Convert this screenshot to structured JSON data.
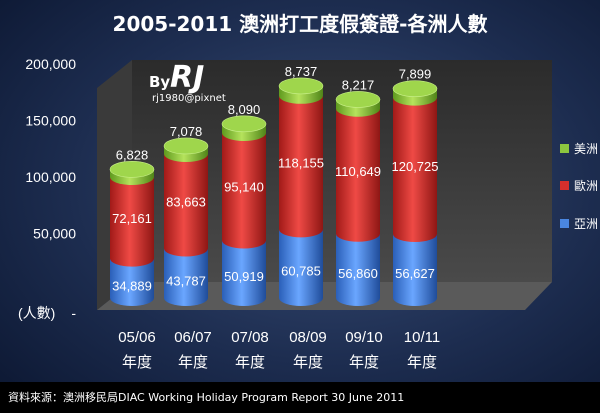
{
  "chart_data": {
    "type": "bar",
    "subtype": "stacked-cylinder-3d",
    "title": "2005-2011 澳洲打工度假簽證-各洲人數",
    "ylabel": "(人數)",
    "ylim": [
      0,
      200000
    ],
    "yticks": [
      "200,000",
      "150,000",
      "100,000",
      "50,000",
      "-"
    ],
    "ytick_values": [
      200000,
      150000,
      100000,
      50000,
      0
    ],
    "categories": [
      "05/06",
      "06/07",
      "07/08",
      "08/09",
      "09/10",
      "10/11"
    ],
    "category_suffix": "年度",
    "series": [
      {
        "name": "亞洲",
        "color": "#4a86e0",
        "values": [
          34889,
          43787,
          50919,
          60785,
          56860,
          56627
        ],
        "labels": [
          "34,889",
          "43,787",
          "50,919",
          "60,785",
          "56,860",
          "56,627"
        ]
      },
      {
        "name": "歐洲",
        "color": "#d62f2c",
        "values": [
          72161,
          83663,
          95140,
          118155,
          110649,
          120725
        ],
        "labels": [
          "72,161",
          "83,663",
          "95,140",
          "118,155",
          "110,649",
          "120,725"
        ]
      },
      {
        "name": "美洲",
        "color": "#8cc63f",
        "values": [
          6828,
          7078,
          8090,
          8737,
          8217,
          7899
        ],
        "labels": [
          "6,828",
          "7,078",
          "8,090",
          "8,737",
          "8,217",
          "7,899"
        ]
      }
    ],
    "legend_position": "right",
    "grid": false
  },
  "watermark": {
    "brand": "RJ",
    "by": "By",
    "handle": "rj1980@pixnet"
  },
  "footer": {
    "source": "資料來源：澳洲移民局DIAC Working Holiday Program Report 30 June 2011"
  }
}
